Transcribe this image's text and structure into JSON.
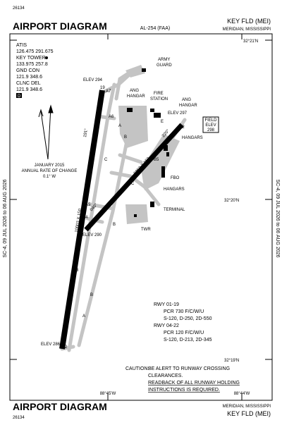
{
  "header": {
    "id": "26134",
    "title": "AIRPORT DIAGRAM",
    "chart_id": "AL-254 (FAA)",
    "airport": "KEY FLD (MEI)",
    "city": "MERIDIAN, MISSISSIPPI"
  },
  "footer": {
    "id": "26134",
    "title": "AIRPORT DIAGRAM",
    "city": "MERIDIAN, MISSISSIPPI",
    "airport": "KEY FLD (MEI)"
  },
  "effective": {
    "left": "SC-4, 09 JUL 2026 to 06 AUG 2026",
    "right": "SC-4, 09 JUL 2026 to 06 AUG 2026"
  },
  "coordinates": {
    "lat": [
      "32°21'N",
      "32°20'N",
      "32°19'N"
    ],
    "lon": [
      "88°45'W",
      "88°44'W"
    ]
  },
  "frequencies": [
    "ATIS",
    "126.475 291.675",
    "KEY TOWER",
    "133.975 257.8",
    "GND CON",
    "121.9 348.6",
    "CLNC DEL",
    "121.9 348.6",
    "D"
  ],
  "magnetic": [
    "JANUARY 2015",
    "ANNUAL RATE OF CHANGE",
    "0.1° W"
  ],
  "runways": {
    "r01": {
      "end_a": "1",
      "end_b": "19",
      "size": "10003 X 150",
      "heading_a": "011°",
      "heading_b": "191°"
    },
    "r04": {
      "end_a": "4",
      "end_b": "22",
      "size": "5052 X 150",
      "heading_a": "040°",
      "heading_b": "220°"
    }
  },
  "elevations": [
    "ELEV 294",
    "ELEV 297",
    "ELEV 290",
    "ELEV 286"
  ],
  "field_elev": [
    "FIELD",
    "ELEV",
    "298"
  ],
  "facilities": [
    "ARMY",
    "GUARD",
    "ANG",
    "HANGAR",
    "FIRE",
    "STATION",
    "ANG",
    "HANGAR",
    "HANGARS",
    "FBO",
    "HANGARS",
    "TERMINAL",
    "TWR"
  ],
  "taxiways": [
    "A7",
    "A6",
    "A5",
    "A4",
    "A3",
    "A2",
    "A",
    "A",
    "A",
    "B",
    "B",
    "B",
    "C",
    "C",
    "B5",
    "E"
  ],
  "runway_info": [
    "RWY 01-19",
    "PCR 730 F/C/W/U",
    "S-120, D-250, 2D-550",
    "RWY 04-22",
    "PCR 120 F/C/W/U",
    "S-120, D-213, 2D-345"
  ],
  "caution": [
    "CAUTION:",
    "BE ALERT TO RUNWAY CROSSING",
    "CLEARANCES.",
    "READBACK OF ALL RUNWAY HOLDING",
    "INSTRUCTIONS IS REQUIRED."
  ]
}
